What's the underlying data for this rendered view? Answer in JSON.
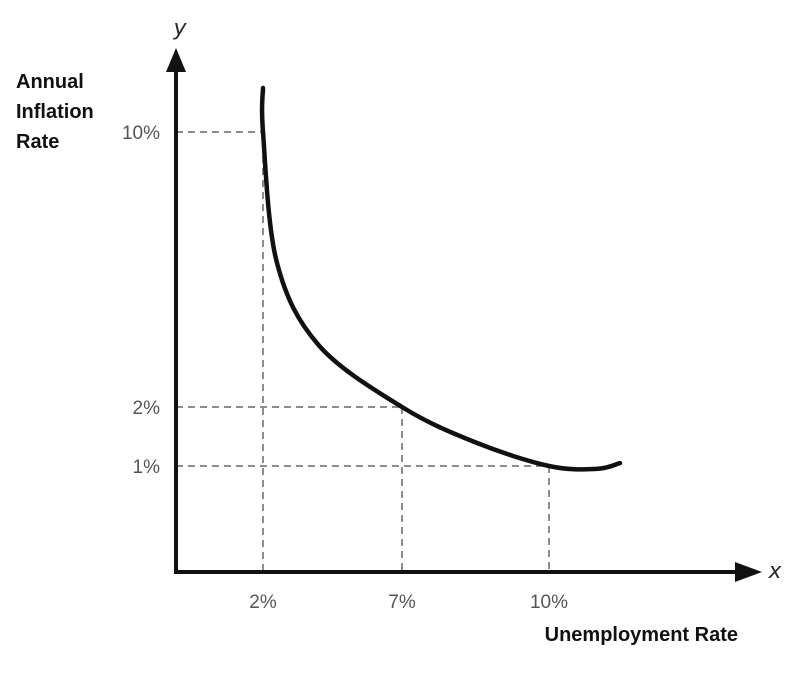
{
  "chart_data": {
    "type": "line",
    "xlabel": "Unemployment Rate",
    "ylabel_lines": [
      "Annual",
      "Inflation",
      "Rate"
    ],
    "x_axis_letter": "x",
    "y_axis_letter": "y",
    "x_ticks": [
      "2%",
      "7%",
      "10%"
    ],
    "y_ticks": [
      "10%",
      "2%",
      "1%"
    ],
    "curve_points": [
      {
        "x": 2,
        "y": 11.2
      },
      {
        "x": 2,
        "y": 10
      },
      {
        "x": 2.5,
        "y": 6.2
      },
      {
        "x": 4,
        "y": 3.8
      },
      {
        "x": 7,
        "y": 2
      },
      {
        "x": 8.5,
        "y": 1.4
      },
      {
        "x": 10,
        "y": 1
      },
      {
        "x": 11,
        "y": 0.95
      },
      {
        "x": 11.5,
        "y": 1.05
      }
    ],
    "highlighted_points": [
      {
        "x": 2,
        "y": 10
      },
      {
        "x": 7,
        "y": 2
      },
      {
        "x": 10,
        "y": 1
      }
    ],
    "guide_lines": "dashed",
    "grid": false,
    "legend": "none"
  }
}
